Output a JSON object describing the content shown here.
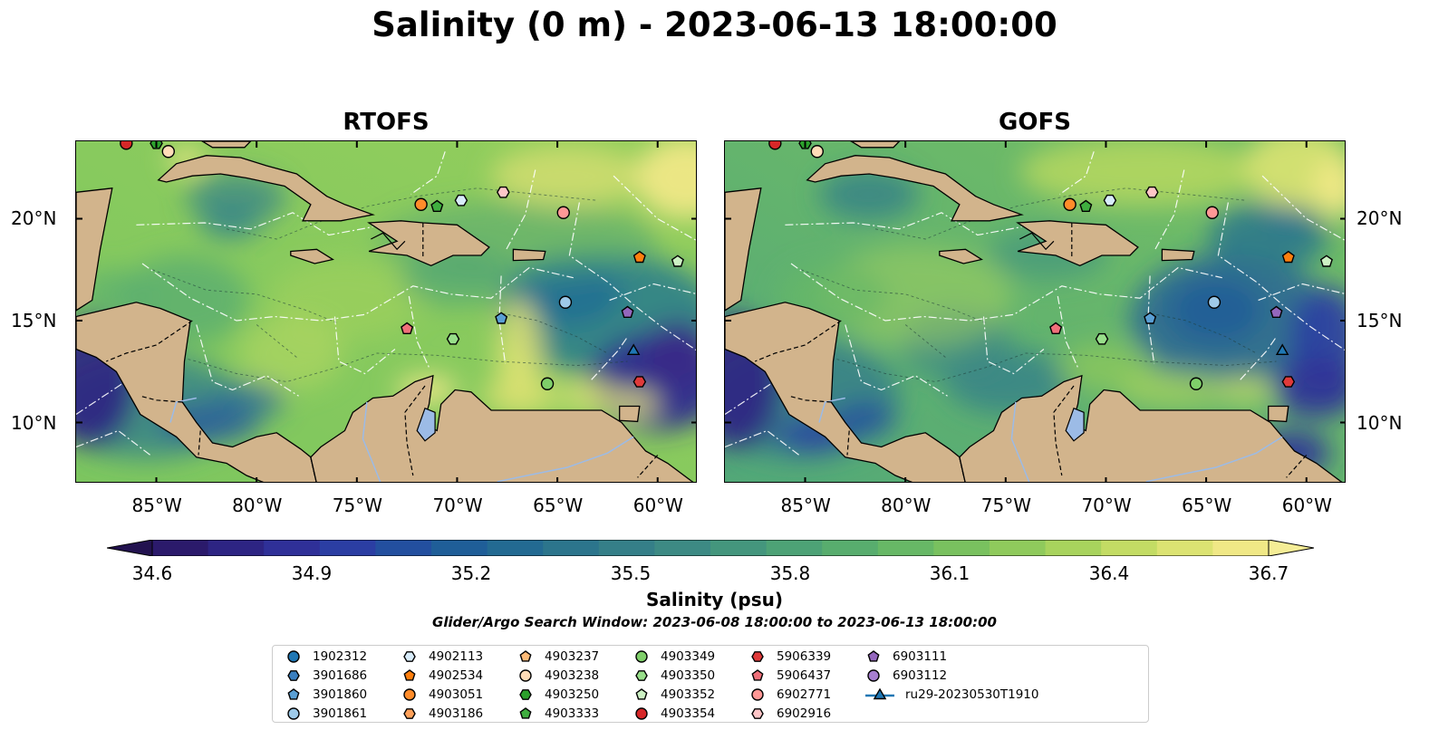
{
  "title": "Salinity (0 m) - 2023-06-13 18:00:00",
  "panels": [
    {
      "title": "RTOFS",
      "variant": "rtofs"
    },
    {
      "title": "GOFS",
      "variant": "gofs"
    }
  ],
  "lat_ticks": [
    "20°N",
    "15°N",
    "10°N"
  ],
  "lon_ticks": [
    "85°W",
    "80°W",
    "75°W",
    "70°W",
    "65°W",
    "60°W"
  ],
  "colorbar": {
    "label": "Salinity (psu)",
    "min": 34.6,
    "max": 36.7,
    "ticks": [
      "34.6",
      "34.9",
      "35.2",
      "35.5",
      "35.8",
      "36.1",
      "36.4",
      "36.7"
    ],
    "colors": [
      "#2b1a6b",
      "#2d2483",
      "#2f3098",
      "#2b3ea3",
      "#234f9f",
      "#1f5e98",
      "#236a92",
      "#2c758c",
      "#357f88",
      "#3d8a84",
      "#44967d",
      "#4da276",
      "#58ad6e",
      "#67b866",
      "#79c15f",
      "#8fca5c",
      "#a8d35d",
      "#c3dc64",
      "#dce372",
      "#f0e886"
    ]
  },
  "search_window": "Glider/Argo Search Window: 2023-06-08 18:00:00 to 2023-06-13 18:00:00",
  "legend": [
    {
      "label": "1902312",
      "marker": "circle",
      "color": "#1f77b4"
    },
    {
      "label": "3901686",
      "marker": "hexagon",
      "color": "#3a7fc0"
    },
    {
      "label": "3901860",
      "marker": "pentagon",
      "color": "#5a9fd4"
    },
    {
      "label": "3901861",
      "marker": "circle",
      "color": "#9ecae9"
    },
    {
      "label": "4902113",
      "marker": "hexagon",
      "color": "#d8ecfa"
    },
    {
      "label": "4902534",
      "marker": "pentagon",
      "color": "#ff7f0e"
    },
    {
      "label": "4903051",
      "marker": "circle",
      "color": "#ff8c2a"
    },
    {
      "label": "4903186",
      "marker": "hexagon",
      "color": "#ffa15a"
    },
    {
      "label": "4903237",
      "marker": "pentagon",
      "color": "#ffbb78"
    },
    {
      "label": "4903238",
      "marker": "circle",
      "color": "#ffdcb8"
    },
    {
      "label": "4903250",
      "marker": "hexagon",
      "color": "#2ca02c"
    },
    {
      "label": "4903333",
      "marker": "pentagon",
      "color": "#3fae3f"
    },
    {
      "label": "4903349",
      "marker": "circle",
      "color": "#7fcf6a"
    },
    {
      "label": "4903350",
      "marker": "hexagon",
      "color": "#98df8a"
    },
    {
      "label": "4903352",
      "marker": "pentagon",
      "color": "#cdf2c4"
    },
    {
      "label": "4903354",
      "marker": "circle",
      "color": "#d62728"
    },
    {
      "label": "5906339",
      "marker": "hexagon",
      "color": "#e03a3a"
    },
    {
      "label": "5906437",
      "marker": "pentagon",
      "color": "#f0707a"
    },
    {
      "label": "6902771",
      "marker": "circle",
      "color": "#ff9896"
    },
    {
      "label": "6902916",
      "marker": "hexagon",
      "color": "#ffc6c8"
    },
    {
      "label": "6903111",
      "marker": "pentagon",
      "color": "#9467bd"
    },
    {
      "label": "6903112",
      "marker": "circle",
      "color": "#a77fd0"
    },
    {
      "label": "ru29-20230530T1910",
      "marker": "triangle-line",
      "color": "#1f77b4"
    }
  ],
  "observations": [
    {
      "id": "4903354",
      "lon": -86.5,
      "lat": 23.7
    },
    {
      "id": "4903250",
      "lon": -85.0,
      "lat": 23.7
    },
    {
      "id": "4903238",
      "lon": -84.4,
      "lat": 23.3
    },
    {
      "id": "4903051",
      "lon": -71.8,
      "lat": 20.7
    },
    {
      "id": "4903333",
      "lon": -71.0,
      "lat": 20.6
    },
    {
      "id": "4902113",
      "lon": -69.8,
      "lat": 20.9
    },
    {
      "id": "6902916",
      "lon": -67.7,
      "lat": 21.3
    },
    {
      "id": "6902771",
      "lon": -64.7,
      "lat": 20.3
    },
    {
      "id": "4902534",
      "lon": -60.9,
      "lat": 18.1
    },
    {
      "id": "4903352",
      "lon": -59.0,
      "lat": 17.9
    },
    {
      "id": "3901861",
      "lon": -64.6,
      "lat": 15.9
    },
    {
      "id": "6903111",
      "lon": -61.5,
      "lat": 15.4
    },
    {
      "id": "3901860",
      "lon": -67.8,
      "lat": 15.1
    },
    {
      "id": "5906437",
      "lon": -72.5,
      "lat": 14.6
    },
    {
      "id": "4903350",
      "lon": -70.2,
      "lat": 14.1
    },
    {
      "id": "ru29-20230530T1910",
      "lon": -61.2,
      "lat": 13.5
    },
    {
      "id": "4903349",
      "lon": -65.5,
      "lat": 11.9
    },
    {
      "id": "5906339",
      "lon": -60.9,
      "lat": 12.0
    }
  ]
}
